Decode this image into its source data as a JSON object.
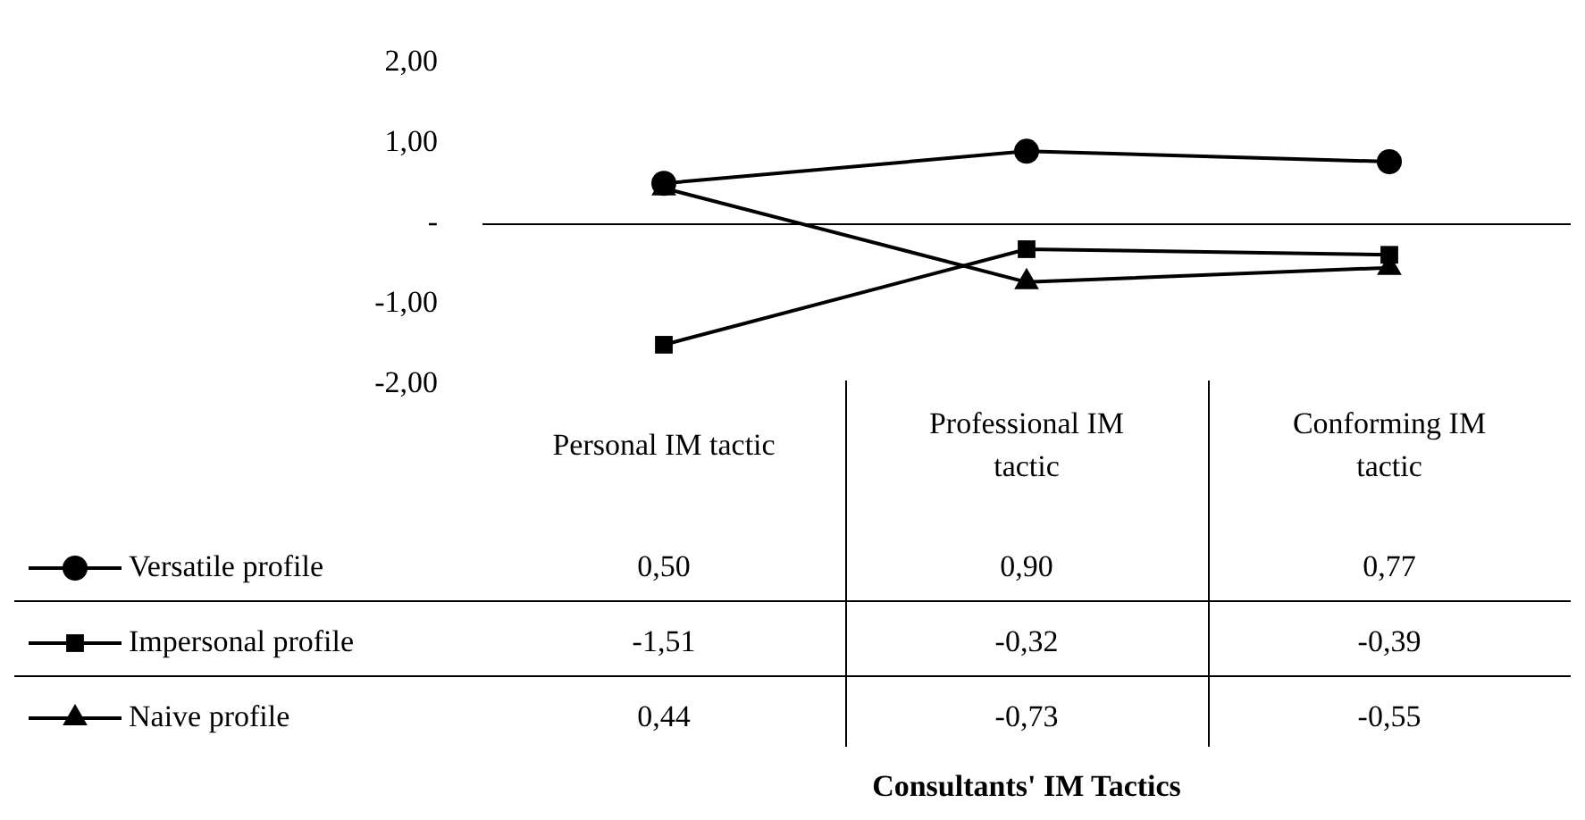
{
  "chart_data": {
    "type": "line",
    "annotations": [
      "Consultants' IM Tactics"
    ],
    "categories": [
      "Personal IM tactic",
      "Professional IM tactic",
      "Conforming IM tactic"
    ],
    "series": [
      {
        "name": "Versatile profile",
        "color": "#000000",
        "marker": "circle",
        "values": [
          0.5,
          0.9,
          0.77
        ],
        "value_labels": [
          "0,50",
          "0,90",
          "0,77"
        ]
      },
      {
        "name": "Impersonal profile",
        "color": "#000000",
        "marker": "square",
        "values": [
          -1.51,
          -0.32,
          -0.39
        ],
        "value_labels": [
          "-1,51",
          "-0,32",
          "-0,39"
        ]
      },
      {
        "name": "Naive profile",
        "color": "#000000",
        "marker": "triangle",
        "values": [
          0.44,
          -0.73,
          -0.55
        ],
        "value_labels": [
          "0,44",
          "-0,73",
          "-0,55"
        ]
      }
    ],
    "ylim": [
      -2,
      2
    ],
    "yticks": [
      {
        "value": -2,
        "label": "-2,00"
      },
      {
        "value": -1,
        "label": "-1,00"
      },
      {
        "value": 0,
        "label": "-"
      },
      {
        "value": 1,
        "label": "1,00"
      },
      {
        "value": 2,
        "label": "2,00"
      }
    ],
    "ref_lines": [
      {
        "axis": "y",
        "value": 0,
        "color": "#000000"
      }
    ],
    "grid": false,
    "legend": "bottom",
    "line_style": "solid"
  }
}
